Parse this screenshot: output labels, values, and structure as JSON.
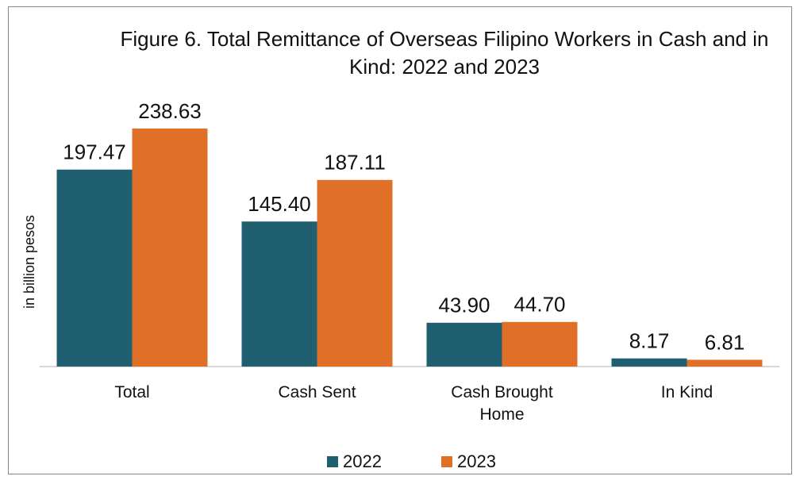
{
  "chart_data": {
    "type": "bar",
    "title": "Figure 6. Total Remittance of Overseas Filipino Workers in Cash and in Kind: 2022 and 2023",
    "y_label": "in billion pesos",
    "categories": [
      "Total",
      "Cash Sent",
      "Cash Brought Home",
      "In Kind"
    ],
    "series": [
      {
        "name": "2022",
        "color": "#1f5f70",
        "values": [
          197.47,
          145.4,
          43.9,
          8.17
        ],
        "value_labels": [
          "197.47",
          "145.40",
          "43.90",
          "8.17"
        ]
      },
      {
        "name": "2023",
        "color": "#e07028",
        "values": [
          238.63,
          187.11,
          44.7,
          6.81
        ],
        "value_labels": [
          "238.63",
          "187.11",
          "44.70",
          "6.81"
        ]
      }
    ],
    "legend": "bottom"
  }
}
